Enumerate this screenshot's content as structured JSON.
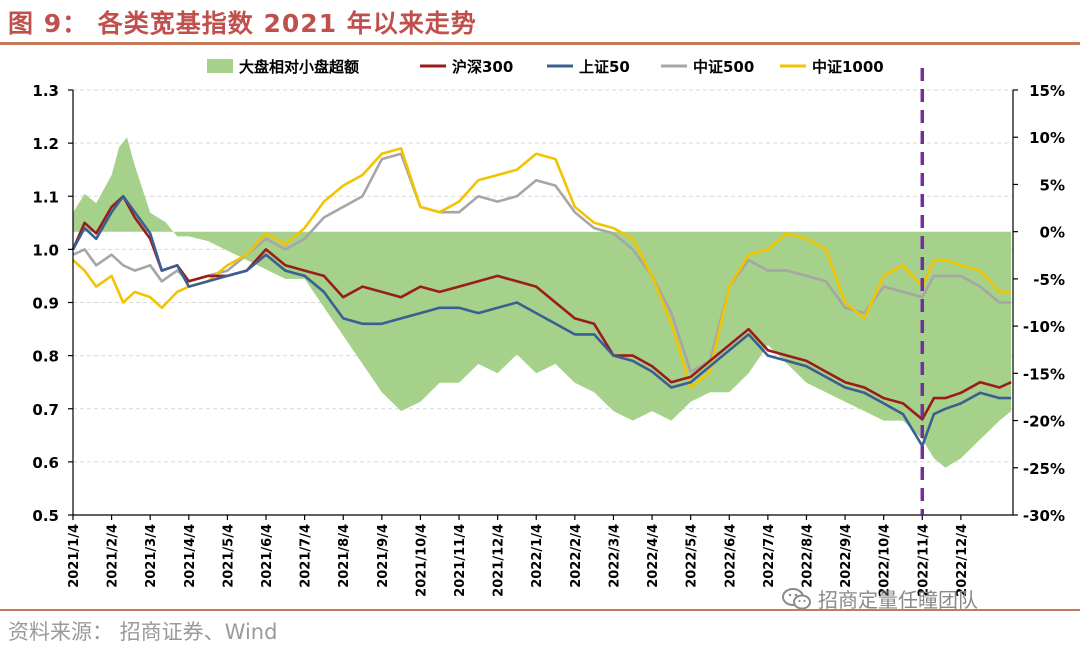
{
  "title": "图 9： 各类宽基指数 2021 年以来走势",
  "source": "资料来源：  招商证券、Wind",
  "watermark": "招商定量任瞳团队",
  "colors": {
    "excess": "#a5d18a",
    "hs300": "#9b1c1c",
    "sz50": "#3a5f92",
    "zz500": "#a6a6a6",
    "zz1000": "#f2c400",
    "marker": "#7030a0",
    "title": "#c0504d"
  },
  "chart_data": {
    "type": "line",
    "title": "各类宽基指数 2021 年以来走势",
    "legend": [
      "大盘相对小盘超额",
      "沪深300",
      "上证50",
      "中证500",
      "中证1000"
    ],
    "legend_position": "top",
    "x_tick_labels": [
      "2021/1/4",
      "2021/2/4",
      "2021/3/4",
      "2021/4/4",
      "2021/5/4",
      "2021/6/4",
      "2021/7/4",
      "2021/8/4",
      "2021/9/4",
      "2021/10/4",
      "2021/11/4",
      "2021/12/4",
      "2022/1/4",
      "2022/2/4",
      "2022/3/4",
      "2022/4/4",
      "2022/5/4",
      "2022/6/4",
      "2022/7/4",
      "2022/8/4",
      "2022/9/4",
      "2022/10/4",
      "2022/11/4",
      "2022/12/4"
    ],
    "y_left": {
      "min": 0.5,
      "max": 1.3,
      "ticks": [
        "0.5",
        "0.6",
        "0.7",
        "0.8",
        "0.9",
        "1.0",
        "1.1",
        "1.2",
        "1.3"
      ]
    },
    "y_right": {
      "min": -30,
      "max": 15,
      "ticks": [
        "-30%",
        "-25%",
        "-20%",
        "-15%",
        "-10%",
        "-5%",
        "0%",
        "5%",
        "10%",
        "15%"
      ]
    },
    "vline_at_month": 22.0,
    "series": [
      {
        "name": "大盘相对小盘超额",
        "kind": "area",
        "axis": "right",
        "unit": "%",
        "x": [
          0,
          0.3,
          0.6,
          1,
          1.2,
          1.4,
          1.6,
          2,
          2.4,
          2.7,
          3,
          3.5,
          4,
          4.5,
          5,
          5.5,
          6,
          6.5,
          7,
          7.5,
          8,
          8.5,
          9,
          9.5,
          10,
          10.5,
          11,
          11.5,
          12,
          12.5,
          13,
          13.5,
          14,
          14.5,
          15,
          15.5,
          16,
          16.5,
          17,
          17.5,
          18,
          18.5,
          19,
          19.5,
          20,
          20.5,
          21,
          21.5,
          22,
          22.3,
          22.6,
          23,
          23.5,
          24,
          24.3
        ],
        "values": [
          2,
          4,
          3,
          6,
          9,
          10,
          7,
          2,
          1,
          -0.5,
          -0.5,
          -1,
          -2,
          -3,
          -4,
          -5,
          -5,
          -8,
          -11,
          -14,
          -17,
          -19,
          -18,
          -16,
          -16,
          -14,
          -15,
          -13,
          -15,
          -14,
          -16,
          -17,
          -19,
          -20,
          -19,
          -20,
          -18,
          -17,
          -17,
          -15,
          -12,
          -14,
          -16,
          -17,
          -18,
          -19,
          -20,
          -20,
          -22,
          -24,
          -25,
          -24,
          -22,
          -20,
          -19
        ]
      },
      {
        "name": "沪深300",
        "kind": "line",
        "axis": "left",
        "x": [
          0,
          0.3,
          0.6,
          1,
          1.3,
          1.6,
          2,
          2.3,
          2.7,
          3,
          3.5,
          4,
          4.5,
          5,
          5.5,
          6,
          6.5,
          7,
          7.5,
          8,
          8.5,
          9,
          9.5,
          10,
          10.5,
          11,
          11.5,
          12,
          12.5,
          13,
          13.5,
          14,
          14.5,
          15,
          15.5,
          16,
          16.5,
          17,
          17.5,
          18,
          18.5,
          19,
          19.5,
          20,
          20.5,
          21,
          21.5,
          22,
          22.3,
          22.6,
          23,
          23.5,
          24,
          24.3
        ],
        "values": [
          1.0,
          1.05,
          1.03,
          1.08,
          1.1,
          1.06,
          1.02,
          0.96,
          0.97,
          0.94,
          0.95,
          0.95,
          0.96,
          1.0,
          0.97,
          0.96,
          0.95,
          0.91,
          0.93,
          0.92,
          0.91,
          0.93,
          0.92,
          0.93,
          0.94,
          0.95,
          0.94,
          0.93,
          0.9,
          0.87,
          0.86,
          0.8,
          0.8,
          0.78,
          0.75,
          0.76,
          0.79,
          0.82,
          0.85,
          0.81,
          0.8,
          0.79,
          0.77,
          0.75,
          0.74,
          0.72,
          0.71,
          0.68,
          0.72,
          0.72,
          0.73,
          0.75,
          0.74,
          0.75
        ]
      },
      {
        "name": "上证50",
        "kind": "line",
        "axis": "left",
        "x": [
          0,
          0.3,
          0.6,
          1,
          1.3,
          1.6,
          2,
          2.3,
          2.7,
          3,
          3.5,
          4,
          4.5,
          5,
          5.5,
          6,
          6.5,
          7,
          7.5,
          8,
          8.5,
          9,
          9.5,
          10,
          10.5,
          11,
          11.5,
          12,
          12.5,
          13,
          13.5,
          14,
          14.5,
          15,
          15.5,
          16,
          16.5,
          17,
          17.5,
          18,
          18.5,
          19,
          19.5,
          20,
          20.5,
          21,
          21.5,
          22,
          22.3,
          22.6,
          23,
          23.5,
          24,
          24.3
        ],
        "values": [
          1.0,
          1.04,
          1.02,
          1.07,
          1.1,
          1.07,
          1.03,
          0.96,
          0.97,
          0.93,
          0.94,
          0.95,
          0.96,
          0.99,
          0.96,
          0.95,
          0.92,
          0.87,
          0.86,
          0.86,
          0.87,
          0.88,
          0.89,
          0.89,
          0.88,
          0.89,
          0.9,
          0.88,
          0.86,
          0.84,
          0.84,
          0.8,
          0.79,
          0.77,
          0.74,
          0.75,
          0.78,
          0.81,
          0.84,
          0.8,
          0.79,
          0.78,
          0.76,
          0.74,
          0.73,
          0.71,
          0.69,
          0.63,
          0.69,
          0.7,
          0.71,
          0.73,
          0.72,
          0.72
        ]
      },
      {
        "name": "中证500",
        "kind": "line",
        "axis": "left",
        "x": [
          0,
          0.3,
          0.6,
          1,
          1.3,
          1.6,
          2,
          2.3,
          2.7,
          3,
          3.5,
          4,
          4.5,
          5,
          5.5,
          6,
          6.5,
          7,
          7.5,
          8,
          8.5,
          9,
          9.5,
          10,
          10.5,
          11,
          11.5,
          12,
          12.5,
          13,
          13.5,
          14,
          14.5,
          15,
          15.5,
          16,
          16.5,
          17,
          17.5,
          18,
          18.5,
          19,
          19.5,
          20,
          20.5,
          21,
          21.5,
          22,
          22.3,
          22.6,
          23,
          23.5,
          24,
          24.3
        ],
        "values": [
          0.99,
          1.0,
          0.97,
          0.99,
          0.97,
          0.96,
          0.97,
          0.94,
          0.96,
          0.94,
          0.95,
          0.96,
          0.99,
          1.02,
          1.0,
          1.02,
          1.06,
          1.08,
          1.1,
          1.17,
          1.18,
          1.08,
          1.07,
          1.07,
          1.1,
          1.09,
          1.1,
          1.13,
          1.12,
          1.07,
          1.04,
          1.03,
          1.0,
          0.95,
          0.88,
          0.77,
          0.79,
          0.93,
          0.98,
          0.96,
          0.96,
          0.95,
          0.94,
          0.89,
          0.88,
          0.93,
          0.92,
          0.91,
          0.95,
          0.95,
          0.95,
          0.93,
          0.9,
          0.9
        ]
      },
      {
        "name": "中证1000",
        "kind": "line",
        "axis": "left",
        "x": [
          0,
          0.3,
          0.6,
          1,
          1.3,
          1.6,
          2,
          2.3,
          2.7,
          3,
          3.5,
          4,
          4.5,
          5,
          5.5,
          6,
          6.5,
          7,
          7.5,
          8,
          8.5,
          9,
          9.5,
          10,
          10.5,
          11,
          11.5,
          12,
          12.5,
          13,
          13.5,
          14,
          14.5,
          15,
          15.5,
          16,
          16.5,
          17,
          17.5,
          18,
          18.5,
          19,
          19.5,
          20,
          20.5,
          21,
          21.5,
          22,
          22.3,
          22.6,
          23,
          23.5,
          24,
          24.3
        ],
        "values": [
          0.98,
          0.96,
          0.93,
          0.95,
          0.9,
          0.92,
          0.91,
          0.89,
          0.92,
          0.93,
          0.94,
          0.97,
          0.99,
          1.03,
          1.01,
          1.04,
          1.09,
          1.12,
          1.14,
          1.18,
          1.19,
          1.08,
          1.07,
          1.09,
          1.13,
          1.14,
          1.15,
          1.18,
          1.17,
          1.08,
          1.05,
          1.04,
          1.02,
          0.95,
          0.86,
          0.74,
          0.77,
          0.93,
          0.99,
          1.0,
          1.03,
          1.02,
          1.0,
          0.9,
          0.87,
          0.95,
          0.97,
          0.93,
          0.98,
          0.98,
          0.97,
          0.96,
          0.92,
          0.92
        ]
      }
    ]
  }
}
